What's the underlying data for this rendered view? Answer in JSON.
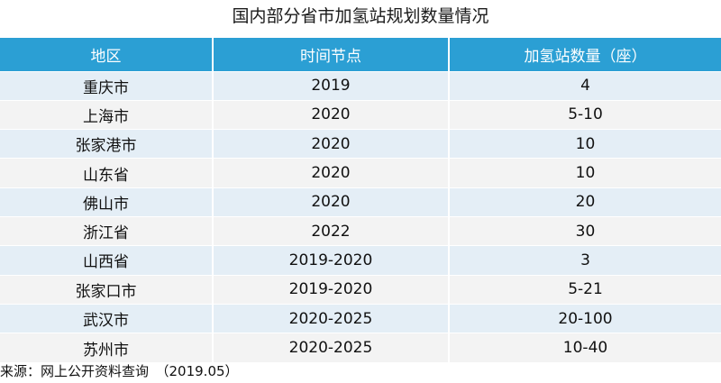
{
  "title": "国内部分省市加氢站规划数量情况",
  "table": {
    "headers": [
      "地区",
      "时间节点",
      "加氢站数量（座）"
    ],
    "rows": [
      [
        "重庆市",
        "2019",
        "4"
      ],
      [
        "上海市",
        "2020",
        "5-10"
      ],
      [
        "张家港市",
        "2020",
        "10"
      ],
      [
        "山东省",
        "2020",
        "10"
      ],
      [
        "佛山市",
        "2020",
        "20"
      ],
      [
        "浙江省",
        "2022",
        "30"
      ],
      [
        "山西省",
        "2019-2020",
        "3"
      ],
      [
        "张家口市",
        "2019-2020",
        "5-21"
      ],
      [
        "武汉市",
        "2020-2025",
        "20-100"
      ],
      [
        "苏州市",
        "2020-2025",
        "10-40"
      ]
    ]
  },
  "source": "来源：网上公开资料查询　（2019.05）",
  "colors": {
    "header_bg": "#2b9fd4",
    "row_odd": "#e4eef6",
    "row_even": "#f3f3f3"
  }
}
